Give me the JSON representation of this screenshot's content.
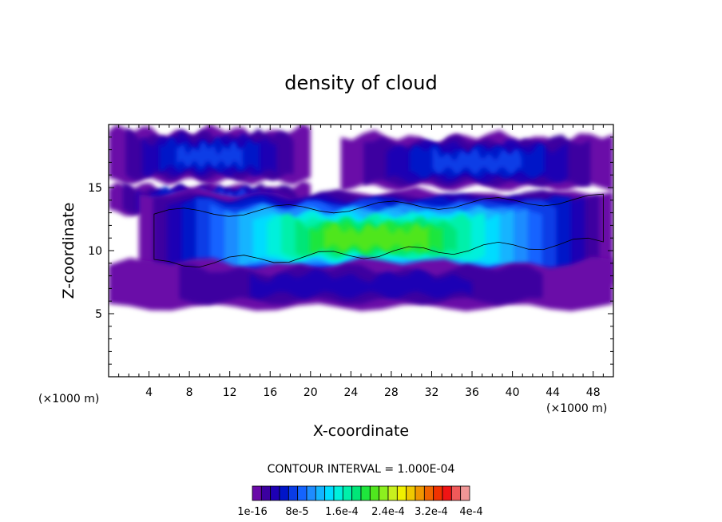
{
  "chart_data": {
    "type": "heatmap",
    "title": "density of cloud",
    "xlabel": "X-coordinate",
    "ylabel": "Z-coordinate",
    "x_unit": "(×1000 m)",
    "xlim": [
      0,
      50
    ],
    "ylim": [
      0,
      20
    ],
    "x_ticks": [
      4,
      8,
      12,
      16,
      20,
      24,
      28,
      32,
      36,
      40,
      44,
      48
    ],
    "y_ticks": [
      5,
      10,
      15
    ],
    "contour_interval_label": "CONTOUR INTERVAL = 1.000E-04",
    "colorbar": {
      "min": 1e-16,
      "max": 0.0004,
      "tick_labels": [
        "1e-16",
        "8e-5",
        "1.6e-4",
        "2.4e-4",
        "3.2e-4",
        "4e-4"
      ],
      "colors": [
        "#6a0aa8",
        "#3c00a0",
        "#1e00b4",
        "#0014c8",
        "#0a3ce6",
        "#1464ff",
        "#1e8cff",
        "#14b4ff",
        "#00dcff",
        "#00f0dc",
        "#00f0aa",
        "#00e678",
        "#1ee63c",
        "#50e61e",
        "#8cf01e",
        "#c8f01e",
        "#f0f000",
        "#f0c800",
        "#f09600",
        "#f06400",
        "#f03200",
        "#f01414",
        "#f05a5a",
        "#f09696"
      ]
    },
    "cloud_bands": [
      {
        "name": "upper-left",
        "z_bottom": 15.5,
        "z_top": 19.5,
        "x_start": 0,
        "x_end": 20,
        "peak": 8e-05
      },
      {
        "name": "upper-right",
        "z_bottom": 15.0,
        "z_top": 19.0,
        "x_start": 23,
        "x_end": 50,
        "peak": 9e-05
      },
      {
        "name": "left-anvil",
        "z_bottom": 13.0,
        "z_top": 15.0,
        "x_start": 0,
        "x_end": 20,
        "peak": 0.0001
      },
      {
        "name": "main-layer",
        "z_bottom": 7.5,
        "z_top": 14.5,
        "x_start": 3,
        "x_end": 50,
        "peak": 0.00023
      },
      {
        "name": "lower-layer",
        "z_bottom": 5.5,
        "z_top": 9.0,
        "x_start": 0,
        "x_end": 50,
        "peak": 5e-05
      }
    ]
  }
}
